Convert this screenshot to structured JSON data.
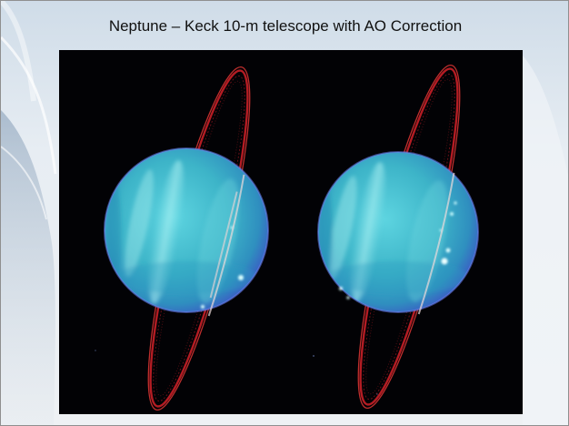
{
  "slide": {
    "title": "Neptune – Keck 10-m telescope with AO Correction"
  },
  "image": {
    "subject": "planet-with-rings",
    "panels": 2,
    "colors": {
      "planet": "#3fb7c9",
      "rings": "#d8242a",
      "background": "#020205"
    }
  }
}
